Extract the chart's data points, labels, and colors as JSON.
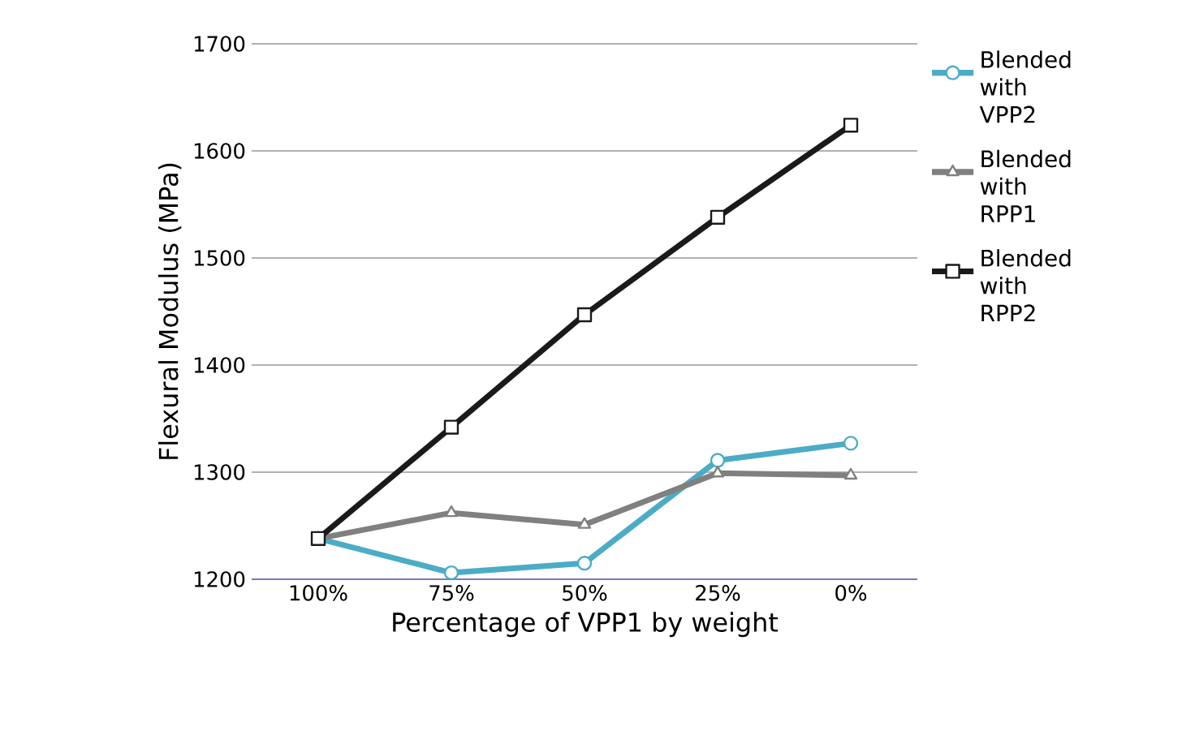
{
  "chart_data": {
    "type": "line",
    "xlabel": "Percentage of VPP1 by weight",
    "ylabel": "Flexural Modulus (MPa)",
    "categories": [
      "100%",
      "75%",
      "50%",
      "25%",
      "0%"
    ],
    "series": [
      {
        "name": "Blended with VPP2",
        "color": "#4bacc6",
        "marker": "circle",
        "values": [
          1238,
          1206,
          1215,
          1311,
          1327
        ]
      },
      {
        "name": "Blended with RPP1",
        "color": "#808080",
        "marker": "triangle",
        "values": [
          1238,
          1262,
          1251,
          1299,
          1297
        ]
      },
      {
        "name": "Blended with RPP2",
        "color": "#1a1a1a",
        "marker": "square",
        "values": [
          1238,
          1342,
          1447,
          1538,
          1624
        ]
      }
    ],
    "ylim": [
      1200,
      1700
    ],
    "yticks": [
      1200,
      1300,
      1400,
      1500,
      1600,
      1700
    ],
    "grid": "y",
    "legend": "right"
  }
}
